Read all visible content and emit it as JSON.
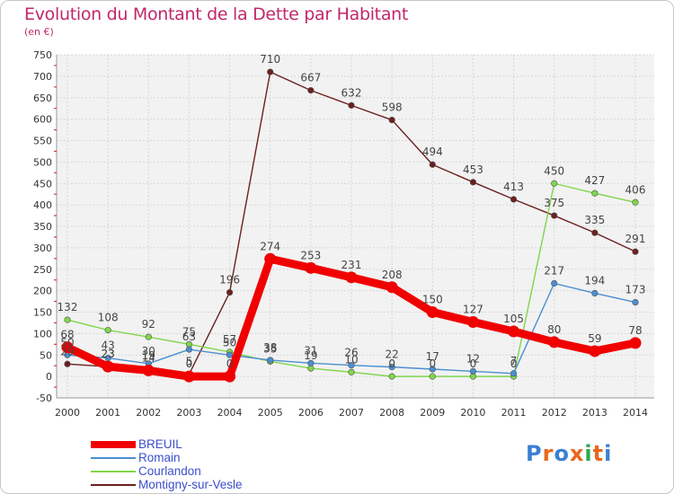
{
  "title": "Evolution du Montant de la Dette par Habitant",
  "subtitle": "(en €)",
  "logo": {
    "letters": [
      "P",
      "r",
      "o",
      "x",
      "i",
      "t",
      "i"
    ],
    "colors": [
      "#3a7fd5",
      "#e8681f",
      "#3a7fd5",
      "#e8681f",
      "#2fa84f",
      "#e8681f",
      "#3a7fd5"
    ]
  },
  "chart_data": {
    "type": "line",
    "x": [
      "2000",
      "2001",
      "2002",
      "2003",
      "2004",
      "2005",
      "2006",
      "2007",
      "2008",
      "2009",
      "2010",
      "2011",
      "2012",
      "2013",
      "2014"
    ],
    "ylim": [
      -50,
      750
    ],
    "yticks": [
      -50,
      0,
      50,
      100,
      150,
      200,
      250,
      300,
      350,
      400,
      450,
      500,
      550,
      600,
      650,
      700,
      750
    ],
    "grid": true,
    "legend_position": "bottom-left",
    "series": [
      {
        "name": "BREUIL",
        "color": "#f00000",
        "values": [
          68,
          23,
          14,
          0,
          0,
          274,
          253,
          231,
          208,
          150,
          127,
          105,
          80,
          59,
          78
        ],
        "labels": [
          "68",
          "23",
          "14",
          "0",
          "0",
          "274",
          "253",
          "231",
          "208",
          "150",
          "127",
          "105",
          "80",
          "59",
          "78"
        ]
      },
      {
        "name": "Romain",
        "color": "#4a8fd0",
        "values": [
          50,
          43,
          30,
          63,
          50,
          38,
          31,
          26,
          22,
          17,
          12,
          7,
          217,
          194,
          173
        ],
        "labels": [
          "50",
          "43",
          "30",
          "63",
          "50",
          "38",
          "31",
          "26",
          "22",
          "17",
          "12",
          "7",
          "217",
          "194",
          "173"
        ]
      },
      {
        "name": "Courlandon",
        "color": "#7fd64a",
        "values": [
          132,
          108,
          92,
          75,
          57,
          35,
          19,
          10,
          0,
          0,
          0,
          0,
          450,
          427,
          406
        ],
        "labels": [
          "132",
          "108",
          "92",
          "75",
          "57",
          "35",
          "19",
          "10",
          "0",
          "0",
          "0",
          "0",
          "450",
          "427",
          "406"
        ]
      },
      {
        "name": "Montigny-sur-Vesle",
        "color": "#6b1f1f",
        "values": [
          29,
          23,
          19,
          5,
          196,
          710,
          667,
          632,
          598,
          494,
          453,
          413,
          375,
          335,
          291
        ],
        "labels": [
          "29",
          "23",
          "19",
          "5",
          "196",
          "710",
          "667",
          "632",
          "598",
          "494",
          "453",
          "413",
          "375",
          "335",
          "291"
        ]
      }
    ]
  }
}
